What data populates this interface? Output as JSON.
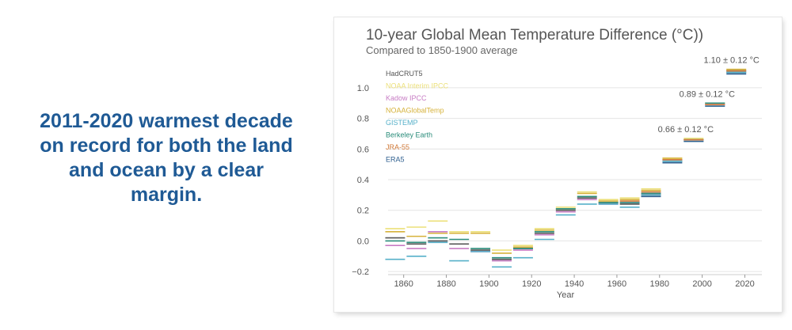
{
  "headline": {
    "lines": [
      "2011-2020  warmest decade",
      "on record for both the land",
      "and ocean by a clear",
      "margin."
    ]
  },
  "colors": {
    "headline": "#1f5a95",
    "highlight_annotation": "#b22222"
  },
  "chart_data": {
    "type": "line",
    "title": "10-year Global Mean Temperature Difference (°C))",
    "subtitle": "Compared to 1850-1900 average",
    "xlabel": "Year",
    "ylabel": "",
    "xlim": [
      1846,
      2028
    ],
    "ylim": [
      -0.22,
      1.17
    ],
    "xticks": [
      1860,
      1880,
      1900,
      1920,
      1940,
      1960,
      1980,
      2000,
      2020
    ],
    "yticks": [
      -0.2,
      0.0,
      0.2,
      0.4,
      0.6,
      0.8,
      1.0
    ],
    "ytick_labels": [
      "−0.2",
      "0.0",
      "0.2",
      "0.4",
      "0.6",
      "0.8",
      "1.0"
    ],
    "grid": true,
    "legend_position": "top-left",
    "decades": [
      1851,
      1861,
      1871,
      1881,
      1891,
      1901,
      1911,
      1921,
      1931,
      1941,
      1951,
      1961,
      1971,
      1981,
      1991,
      2001,
      2011
    ],
    "series": [
      {
        "name": "HadCRUT5",
        "color": "#555555",
        "values": [
          0.02,
          -0.02,
          0.0,
          -0.02,
          -0.06,
          -0.12,
          -0.05,
          0.05,
          0.2,
          0.28,
          0.25,
          0.24,
          0.3,
          0.52,
          0.66,
          0.89,
          1.1
        ]
      },
      {
        "name": "NOAA Interim IPCC",
        "color": "#ece07a",
        "values": [
          0.08,
          0.09,
          0.13,
          0.06,
          0.06,
          -0.06,
          -0.03,
          0.08,
          0.22,
          0.32,
          0.27,
          0.28,
          0.34,
          0.54,
          0.67,
          0.9,
          1.12
        ]
      },
      {
        "name": "Kadow IPCC",
        "color": "#c77cc4",
        "values": [
          -0.03,
          -0.05,
          0.06,
          -0.05,
          -0.07,
          -0.13,
          -0.06,
          0.04,
          0.19,
          0.27,
          0.24,
          0.25,
          0.31,
          0.53,
          0.66,
          0.89,
          1.11
        ]
      },
      {
        "name": "NOAAGlobalTemp",
        "color": "#d6b23a",
        "values": [
          0.06,
          0.03,
          0.05,
          0.05,
          0.05,
          -0.08,
          -0.04,
          0.07,
          0.21,
          0.31,
          0.26,
          0.27,
          0.33,
          0.54,
          0.66,
          0.9,
          1.12
        ]
      },
      {
        "name": "GISTEMP",
        "color": "#56b0c9",
        "values": [
          -0.12,
          -0.1,
          -0.01,
          -0.13,
          -0.07,
          -0.17,
          -0.11,
          0.01,
          0.17,
          0.24,
          0.24,
          0.22,
          0.3,
          0.52,
          0.65,
          0.88,
          1.1
        ]
      },
      {
        "name": "Berkeley Earth",
        "color": "#2a8c7a",
        "values": [
          0.0,
          -0.01,
          0.02,
          0.01,
          -0.05,
          -0.11,
          -0.05,
          0.06,
          0.21,
          0.29,
          0.25,
          0.25,
          0.31,
          0.53,
          0.66,
          0.9,
          1.11
        ]
      },
      {
        "name": "JRA-55",
        "color": "#d07a3a",
        "values": [
          null,
          null,
          null,
          null,
          null,
          null,
          null,
          null,
          null,
          null,
          null,
          0.26,
          0.32,
          0.53,
          0.66,
          0.89,
          1.11
        ]
      },
      {
        "name": "ERA5",
        "color": "#2f5f8f",
        "values": [
          null,
          null,
          null,
          null,
          null,
          null,
          null,
          null,
          null,
          null,
          null,
          null,
          0.29,
          0.51,
          0.65,
          0.88,
          1.09
        ]
      }
    ],
    "annotations": [
      {
        "text": "1.10 ± 0.12 °C",
        "highlight": true
      },
      {
        "text": "0.89 ± 0.12 °C",
        "highlight": false
      },
      {
        "text": "0.66 ± 0.12 °C",
        "highlight": false
      }
    ]
  }
}
